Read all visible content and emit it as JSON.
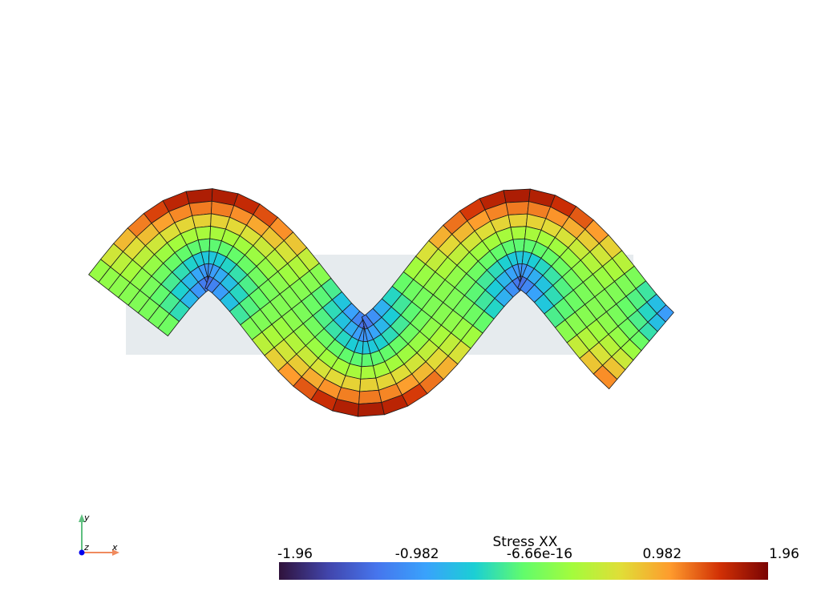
{
  "scalar_bar": {
    "title": "Stress XX",
    "range": [
      -1.96,
      1.96
    ],
    "ticks": [
      -1.96,
      -0.982,
      -6.66e-16,
      0.982,
      1.96
    ]
  },
  "axes_widget": {
    "x": "x",
    "y": "y",
    "z": "z"
  }
}
